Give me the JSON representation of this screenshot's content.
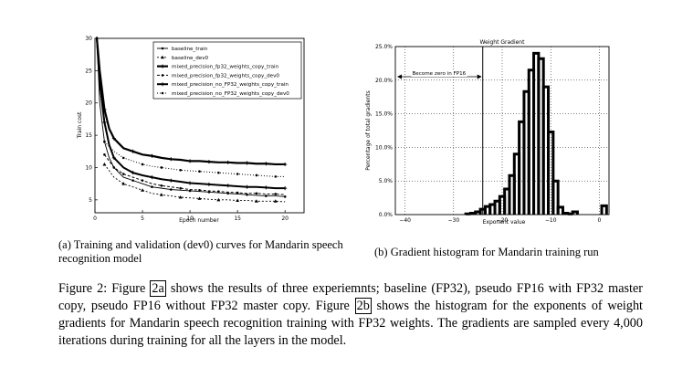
{
  "panel_a": {
    "caption": "(a) Training and validation (dev0) curves for Mandarin speech recognition model"
  },
  "panel_b": {
    "caption": "(b) Gradient histogram for Mandarin training run"
  },
  "main_caption": {
    "p1": "Figure 2: Figure ",
    "ref_a": "2a",
    "p2": " shows the results of three experiemnts; baseline (FP32), pseudo FP16 with FP32 master copy, pseudo FP16 without FP32 master copy. Figure ",
    "ref_b": "2b",
    "p3": " shows the histogram for the exponents of weight gradients for Mandarin speech recognition training with FP32 weights. The gradients are sampled every 4,000 iterations during training for all the layers in the model."
  },
  "chart_data": [
    {
      "type": "line",
      "xlabel": "Epoch number",
      "ylabel": "Train cost",
      "xlim": [
        0,
        22
      ],
      "ylim": [
        3,
        30
      ],
      "xticks": [
        0,
        5,
        10,
        15,
        20
      ],
      "yticks": [
        5,
        10,
        15,
        20,
        25,
        30
      ],
      "legend_position": "top-right",
      "series": [
        {
          "name": "baseline_train",
          "marker": "dot",
          "x": [
            0.2,
            0.5,
            1,
            1.5,
            2,
            3,
            4,
            5,
            6,
            7,
            8,
            9,
            10,
            11,
            12,
            13,
            14,
            15,
            16,
            17,
            18,
            19,
            20
          ],
          "y": [
            30,
            20,
            14,
            11.5,
            10,
            8.5,
            8,
            7.5,
            7,
            6.8,
            6.6,
            6.5,
            6.4,
            6.3,
            6.2,
            6.1,
            6,
            5.9,
            5.8,
            5.7,
            5.6,
            5.6,
            5.5
          ]
        },
        {
          "name": "baseline_dev0",
          "marker": "triangle",
          "x": [
            1,
            2,
            3,
            4,
            5,
            6,
            7,
            8,
            9,
            10,
            11,
            12,
            13,
            14,
            15,
            16,
            17,
            18,
            19,
            20
          ],
          "y": [
            10.5,
            8.5,
            7.5,
            7,
            6.5,
            6,
            5.8,
            5.6,
            5.4,
            5.3,
            5.2,
            5.1,
            5,
            5,
            4.9,
            4.9,
            4.8,
            4.8,
            4.8,
            4.7
          ]
        },
        {
          "name": "mixed_precision_fp32_weights_copy_train",
          "marker": "star",
          "x": [
            0.2,
            0.5,
            1,
            1.5,
            2,
            3,
            4,
            5,
            6,
            7,
            8,
            9,
            10,
            11,
            12,
            13,
            14,
            15,
            16,
            17,
            18,
            19,
            20
          ],
          "y": [
            30,
            25,
            19,
            16,
            14.5,
            13,
            12.5,
            12,
            11.8,
            11.5,
            11.3,
            11.2,
            11,
            11,
            10.9,
            10.8,
            10.8,
            10.7,
            10.7,
            10.6,
            10.6,
            10.5,
            10.5
          ]
        },
        {
          "name": "mixed_precision_fp32_weights_copy_dev0",
          "marker": "dot",
          "x": [
            1,
            2,
            3,
            4,
            5,
            6,
            7,
            8,
            9,
            10,
            11,
            12,
            13,
            14,
            15,
            16,
            17,
            18,
            19,
            20
          ],
          "y": [
            12,
            10,
            9,
            8.5,
            8,
            7.5,
            7.2,
            7,
            6.8,
            6.6,
            6.5,
            6.4,
            6.3,
            6.2,
            6.1,
            6,
            6,
            5.9,
            5.9,
            5.8
          ]
        },
        {
          "name": "mixed_precision_no_FP32_weights_copy_train",
          "marker": "star",
          "x": [
            0.2,
            0.5,
            1,
            1.5,
            2,
            3,
            4,
            5,
            6,
            7,
            8,
            9,
            10,
            11,
            12,
            13,
            14,
            15,
            16,
            17,
            18,
            19,
            20
          ],
          "y": [
            30,
            23,
            17,
            13.5,
            11.5,
            10,
            9.2,
            8.8,
            8.5,
            8.2,
            8,
            7.8,
            7.6,
            7.5,
            7.4,
            7.3,
            7.2,
            7.1,
            7,
            7,
            6.9,
            6.8,
            6.8
          ]
        },
        {
          "name": "mixed_precision_no_FP32_weights_copy_dev0",
          "marker": "dot",
          "x": [
            1,
            2,
            3,
            4,
            5,
            6,
            7,
            8,
            9,
            10,
            11,
            12,
            13,
            14,
            15,
            16,
            17,
            18,
            19,
            20
          ],
          "y": [
            14,
            12.5,
            11.5,
            11,
            10.5,
            10.2,
            10,
            9.8,
            9.6,
            9.5,
            9.4,
            9.3,
            9.2,
            9.1,
            9,
            8.9,
            8.8,
            8.7,
            8.6,
            8.6
          ]
        }
      ]
    },
    {
      "type": "bar",
      "title": "Weight Gradient",
      "xlabel": "Exponent value",
      "ylabel": "Percentage of total gradients",
      "xlim": [
        -42,
        2
      ],
      "ylim": [
        0,
        25
      ],
      "xticks": [
        -40,
        -30,
        -20,
        -10,
        0
      ],
      "yticks": [
        "0.0%",
        "5.0%",
        "10.0%",
        "15.0%",
        "20.0%",
        "25.0%"
      ],
      "annotation": "Become zero in FP16",
      "threshold_x": -24,
      "bins": [
        -27,
        -26,
        -25,
        -24,
        -23,
        -22,
        -21,
        -20,
        -19,
        -18,
        -17,
        -16,
        -15,
        -14,
        -13,
        -12,
        -11,
        -10,
        -9,
        -8,
        -7,
        -6,
        -5,
        1
      ],
      "values": [
        0.1,
        0.2,
        0.4,
        0.8,
        1.2,
        1.5,
        2.0,
        2.7,
        3.8,
        5.8,
        9.0,
        13.8,
        18.3,
        21.5,
        24.0,
        23.2,
        19.0,
        12.3,
        5.0,
        1.1,
        0.2,
        0.1,
        0.4,
        1.3
      ]
    }
  ]
}
